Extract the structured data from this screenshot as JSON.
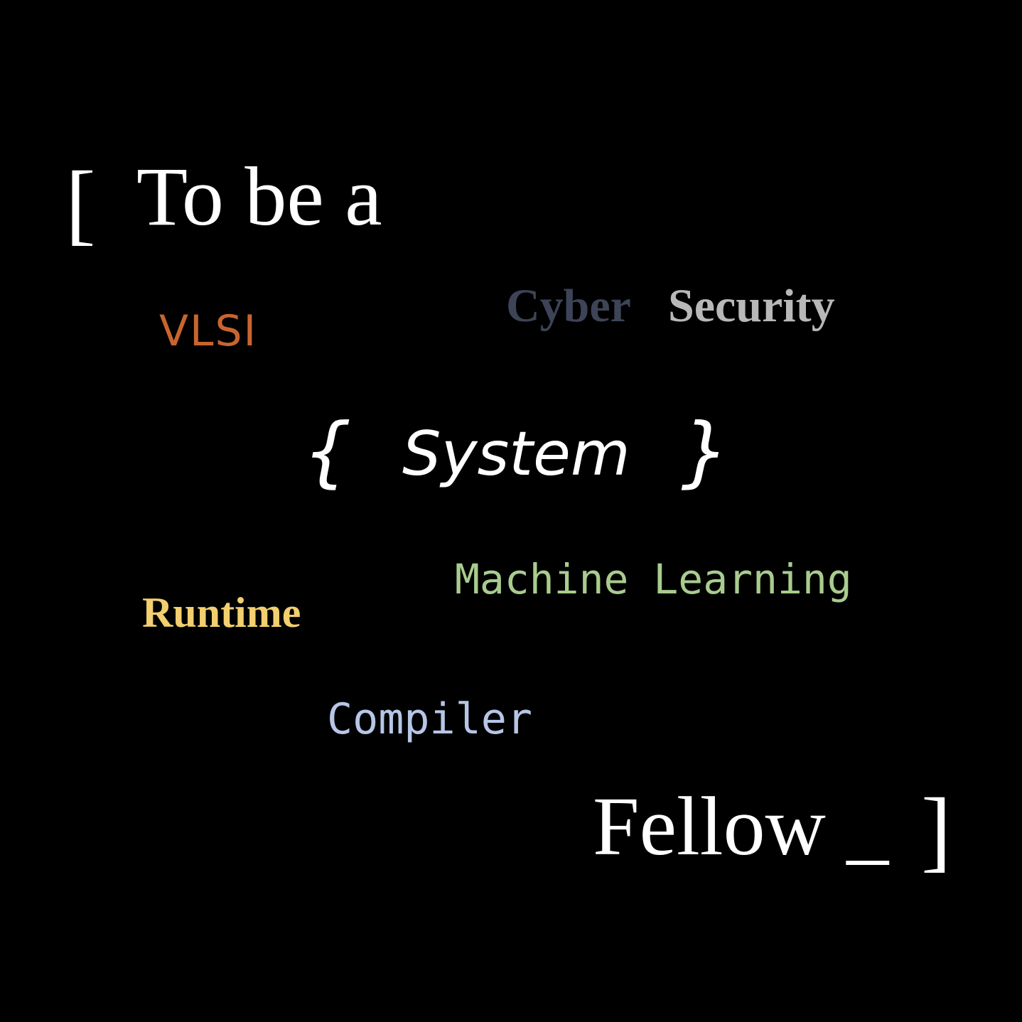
{
  "background_color": "#000000",
  "headline": {
    "open_bracket": "[",
    "text": "To be a",
    "color": "#ffffff"
  },
  "fields": {
    "vlsi": {
      "text": "VLSI",
      "color": "#c8652f"
    },
    "cyber": {
      "text": "Cyber",
      "color": "#3d4457"
    },
    "security": {
      "text": "Security",
      "color": "#b8b8b8"
    },
    "machine_learning": {
      "text": "Machine Learning",
      "color": "#a9cc8e"
    },
    "runtime": {
      "text": "Runtime",
      "color": "#f2cf6f"
    },
    "compiler": {
      "text": "Compiler",
      "color": "#b7c6e6"
    }
  },
  "center": {
    "brace_open": "{",
    "text": "System",
    "brace_close": "}"
  },
  "closing": {
    "text": "Fellow _",
    "close_bracket": "]",
    "color": "#ffffff"
  }
}
